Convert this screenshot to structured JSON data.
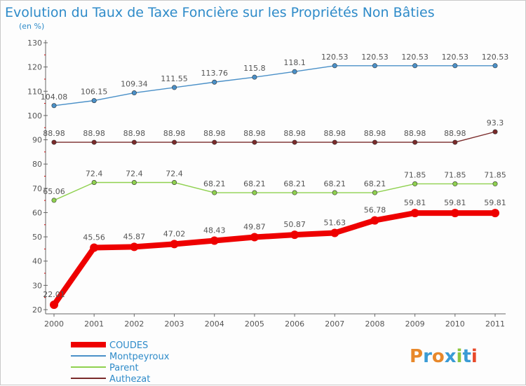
{
  "chart_data": {
    "type": "line",
    "title": "Evolution du Taux de Taxe Foncière sur les Propriétés Non Bâties",
    "subtitle": "(en %)",
    "xlabel": "",
    "ylabel": "",
    "x": [
      "2000",
      "2001",
      "2002",
      "2003",
      "2004",
      "2005",
      "2006",
      "2007",
      "2008",
      "2009",
      "2010",
      "2011"
    ],
    "ylim": [
      20,
      130
    ],
    "yticks": [
      20,
      30,
      40,
      50,
      60,
      70,
      80,
      90,
      100,
      110,
      120,
      130
    ],
    "grid": false,
    "legend_position": "bottom-left",
    "series": [
      {
        "name": "COUDES",
        "color": "#ee0000",
        "values": [
          22.01,
          45.56,
          45.87,
          47.02,
          48.43,
          49.87,
          50.87,
          51.63,
          56.78,
          59.81,
          59.81,
          59.81
        ],
        "labels": [
          "22.01",
          "45.56",
          "45.87",
          "47.02",
          "48.43",
          "49.87",
          "50.87",
          "51.63",
          "56.78",
          "59.81",
          "59.81",
          "59.81"
        ]
      },
      {
        "name": "Montpeyroux",
        "color": "#4a90c8",
        "values": [
          104.08,
          106.15,
          109.34,
          111.55,
          113.76,
          115.8,
          118.1,
          120.53,
          120.53,
          120.53,
          120.53,
          120.53
        ],
        "labels": [
          "104.08",
          "106.15",
          "109.34",
          "111.55",
          "113.76",
          "115.8",
          "118.1",
          "120.53",
          "120.53",
          "120.53",
          "120.53",
          "120.53"
        ]
      },
      {
        "name": "Parent",
        "color": "#8fd14f",
        "values": [
          65.06,
          72.4,
          72.4,
          72.4,
          68.21,
          68.21,
          68.21,
          68.21,
          68.21,
          71.85,
          71.85,
          71.85
        ],
        "labels": [
          "65.06",
          "72.4",
          "72.4",
          "72.4",
          "68.21",
          "68.21",
          "68.21",
          "68.21",
          "68.21",
          "71.85",
          "71.85",
          "71.85"
        ]
      },
      {
        "name": "Authezat",
        "color": "#7a2a2a",
        "values": [
          88.98,
          88.98,
          88.98,
          88.98,
          88.98,
          88.98,
          88.98,
          88.98,
          88.98,
          88.98,
          88.98,
          93.3
        ],
        "labels": [
          "88.98",
          "88.98",
          "88.98",
          "88.98",
          "88.98",
          "88.98",
          "88.98",
          "88.98",
          "88.98",
          "88.98",
          "88.98",
          "93.3"
        ]
      }
    ]
  },
  "brand": {
    "logo_text": "Proxiti"
  }
}
